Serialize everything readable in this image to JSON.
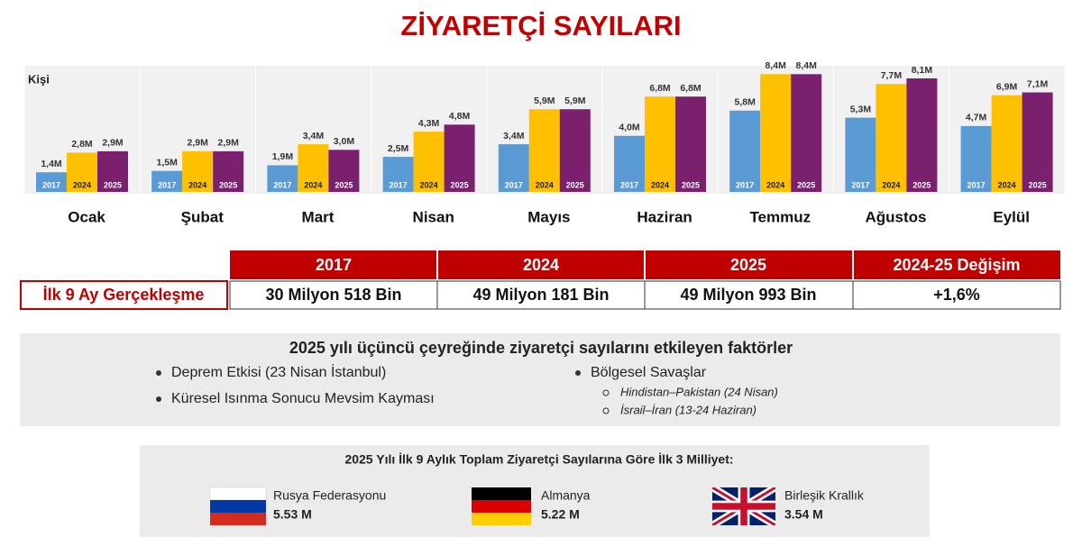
{
  "chart_data": {
    "type": "bar",
    "title": "ZİYARETÇİ SAYILARI",
    "y_label": "Kişi",
    "categories": [
      "Ocak",
      "Şubat",
      "Mart",
      "Nisan",
      "Mayıs",
      "Haziran",
      "Temmuz",
      "Ağustos",
      "Eylül"
    ],
    "ylim": [
      0,
      9
    ],
    "series": [
      {
        "name": "2017",
        "color": "#5b9bd5",
        "values": [
          1.4,
          1.5,
          1.9,
          2.5,
          3.4,
          4.0,
          5.8,
          5.3,
          4.7
        ],
        "value_labels": [
          "1,4M",
          "1,5M",
          "1,9M",
          "2,5M",
          "3,4M",
          "4,0M",
          "5,8M",
          "5,3M",
          "4,7M"
        ]
      },
      {
        "name": "2024",
        "color": "#ffc000",
        "values": [
          2.8,
          2.9,
          3.4,
          4.3,
          5.9,
          6.8,
          8.4,
          7.7,
          6.9
        ],
        "value_labels": [
          "2,8M",
          "2,9M",
          "3,4M",
          "4,3M",
          "5,9M",
          "6,8M",
          "8,4M",
          "7,7M",
          "6,9M"
        ]
      },
      {
        "name": "2025",
        "color": "#7b1f6f",
        "values": [
          2.9,
          2.9,
          3.0,
          4.8,
          5.9,
          6.8,
          8.4,
          8.1,
          7.1
        ],
        "value_labels": [
          "2,9M",
          "2,9M",
          "3,0M",
          "4,8M",
          "5,9M",
          "6,8M",
          "8,4M",
          "8,1M",
          "7,1M"
        ]
      }
    ]
  },
  "table": {
    "columns": [
      "2017",
      "2024",
      "2025",
      "2024-25 Değişim"
    ],
    "row_label": "İlk 9 Ay Gerçekleşme",
    "row": [
      "30 Milyon 518 Bin",
      "49 Milyon 181 Bin",
      "49 Milyon 993 Bin",
      "+1,6%"
    ]
  },
  "factors": {
    "title": "2025 yılı üçüncü çeyreğinde ziyaretçi sayılarını etkileyen faktörler",
    "left": [
      "Deprem Etkisi (23 Nisan İstanbul)",
      "Küresel Isınma Sonucu Mevsim Kayması"
    ],
    "right": {
      "label": "Bölgesel Savaşlar",
      "items": [
        "Hindistan–Pakistan (24 Nisan)",
        "İsrail–İran  (13-24 Haziran)"
      ]
    }
  },
  "nationalities": {
    "title": "2025 Yılı İlk 9 Aylık Toplam Ziyaretçi Sayılarına Göre İlk 3 Milliyet:",
    "items": [
      {
        "name": "Rusya Federasyonu",
        "value": "5.53 M"
      },
      {
        "name": "Almanya",
        "value": "5.22 M"
      },
      {
        "name": "Birleşik Krallık",
        "value": "3.54 M"
      }
    ]
  }
}
